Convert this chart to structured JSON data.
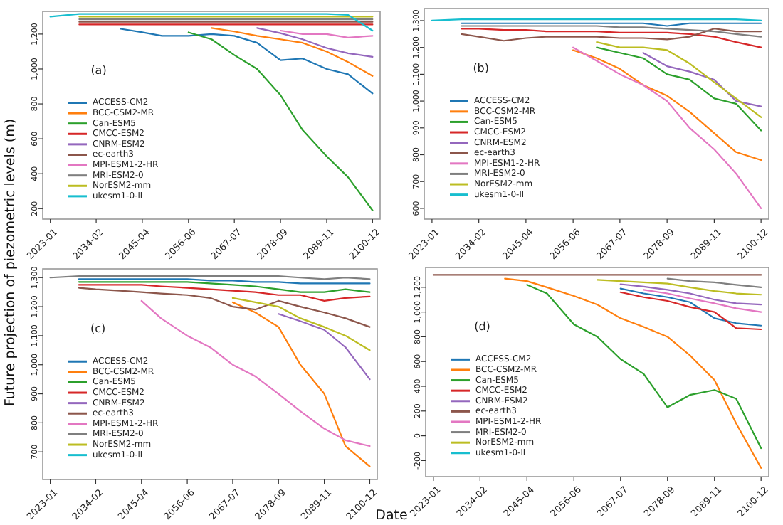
{
  "chart_data": [
    {
      "type": "line",
      "ylabel": "Future projection of piezometric levels (m)",
      "annotations": [
        "(a)"
      ],
      "legend": "left",
      "x": [
        "2023-01",
        "2030-01",
        "2034-02",
        "2040-01",
        "2045-04",
        "2050-01",
        "2056-06",
        "2062-01",
        "2067-07",
        "2073-01",
        "2078-09",
        "2084-01",
        "2089-11",
        "2095-01",
        "2100-12"
      ],
      "xlim": [
        "2021-03",
        "2102-10"
      ],
      "xticks": [
        "2023-01",
        "2034-02",
        "2045-04",
        "2056-06",
        "2067-07",
        "2078-09",
        "2089-11",
        "2100-12"
      ],
      "ylim": [
        140,
        1330
      ],
      "yticks": [
        200,
        400,
        600,
        800,
        {
          "value": 1000,
          "label": "1,000"
        },
        {
          "value": 1200,
          "label": "1,200"
        }
      ],
      "series": [
        {
          "name": "ACCESS-CM2",
          "color": "#1f77b4",
          "values": [
            null,
            null,
            null,
            1230,
            1210,
            1190,
            1190,
            1200,
            1190,
            1150,
            1050,
            1060,
            1000,
            970,
            860
          ]
        },
        {
          "name": "BCC-CSM2-MR",
          "color": "#ff7f0e",
          "values": [
            null,
            null,
            null,
            null,
            null,
            null,
            null,
            1235,
            1215,
            1190,
            1170,
            1150,
            1100,
            1040,
            960
          ]
        },
        {
          "name": "Can-ESM5",
          "color": "#2ca02c",
          "values": [
            null,
            null,
            null,
            null,
            null,
            null,
            1210,
            1170,
            1080,
            1000,
            850,
            650,
            500,
            380,
            190
          ]
        },
        {
          "name": "CMCC-ESM2",
          "color": "#d62728",
          "values": [
            null,
            1255,
            1255,
            1255,
            1255,
            1255,
            1255,
            1255,
            1255,
            1255,
            1255,
            1255,
            1255,
            1255,
            1255
          ]
        },
        {
          "name": "CNRM-ESM2",
          "color": "#9467bd",
          "values": [
            null,
            null,
            null,
            null,
            null,
            null,
            null,
            null,
            null,
            1235,
            1205,
            1170,
            1120,
            1090,
            1070
          ]
        },
        {
          "name": "ec-earth3",
          "color": "#8c564b",
          "values": [
            null,
            1270,
            1270,
            1270,
            1270,
            1270,
            1270,
            1270,
            1270,
            1270,
            1270,
            1270,
            1270,
            1270,
            1270
          ]
        },
        {
          "name": "MPI-ESM1-2-HR",
          "color": "#e377c2",
          "values": [
            null,
            null,
            null,
            null,
            null,
            null,
            null,
            null,
            null,
            null,
            1220,
            1200,
            1200,
            1180,
            1190
          ]
        },
        {
          "name": "MRI-ESM2-0",
          "color": "#7f7f7f",
          "values": [
            null,
            1285,
            1285,
            1285,
            1285,
            1285,
            1285,
            1285,
            1285,
            1285,
            1285,
            1285,
            1285,
            1285,
            1285
          ]
        },
        {
          "name": "NorESM2-mm",
          "color": "#bcbd22",
          "values": [
            null,
            1300,
            1300,
            1300,
            1300,
            1300,
            1300,
            1300,
            1300,
            1300,
            1300,
            1300,
            1300,
            1300,
            1300
          ]
        },
        {
          "name": "ukesm1-0-ll",
          "color": "#17becf",
          "values": [
            1300,
            1315,
            1315,
            1315,
            1315,
            1315,
            1315,
            1315,
            1315,
            1315,
            1315,
            1315,
            1315,
            1310,
            1220
          ]
        }
      ]
    },
    {
      "type": "line",
      "annotations": [
        "(b)"
      ],
      "legend": "left",
      "x": [
        "2023-01",
        "2030-01",
        "2034-02",
        "2040-01",
        "2045-04",
        "2050-01",
        "2056-06",
        "2062-01",
        "2067-07",
        "2073-01",
        "2078-09",
        "2084-01",
        "2089-11",
        "2095-01",
        "2100-12"
      ],
      "xlim": [
        "2021-03",
        "2102-10"
      ],
      "xticks": [
        "2023-01",
        "2034-02",
        "2045-04",
        "2056-06",
        "2067-07",
        "2078-09",
        "2089-11",
        "2100-12"
      ],
      "ylim": [
        560,
        1345
      ],
      "yticks": [
        600,
        700,
        800,
        900,
        {
          "value": 1000,
          "label": "1,000"
        },
        {
          "value": 1100,
          "label": "1,100"
        },
        {
          "value": 1200,
          "label": "1,200"
        },
        {
          "value": 1300,
          "label": "1,300"
        }
      ],
      "series": [
        {
          "name": "ACCESS-CM2",
          "color": "#1f77b4",
          "values": [
            null,
            1290,
            1290,
            1290,
            1290,
            1290,
            1290,
            1290,
            1290,
            1290,
            1280,
            1290,
            1290,
            1290,
            1290
          ]
        },
        {
          "name": "BCC-CSM2-MR",
          "color": "#ff7f0e",
          "values": [
            null,
            null,
            null,
            null,
            null,
            null,
            1190,
            1160,
            1120,
            1060,
            1020,
            960,
            880,
            810,
            780
          ]
        },
        {
          "name": "Can-ESM5",
          "color": "#2ca02c",
          "values": [
            null,
            null,
            null,
            null,
            null,
            null,
            null,
            1200,
            1180,
            1160,
            1100,
            1080,
            1010,
            990,
            890
          ]
        },
        {
          "name": "CMCC-ESM2",
          "color": "#d62728",
          "values": [
            null,
            1270,
            1270,
            1265,
            1265,
            1260,
            1260,
            1260,
            1255,
            1255,
            1255,
            1250,
            1240,
            1220,
            1200
          ]
        },
        {
          "name": "CNRM-ESM2",
          "color": "#9467bd",
          "values": [
            null,
            null,
            null,
            null,
            null,
            null,
            null,
            null,
            null,
            1180,
            1130,
            1110,
            1080,
            1000,
            980
          ]
        },
        {
          "name": "ec-earth3",
          "color": "#8c564b",
          "values": [
            null,
            1250,
            1240,
            1225,
            1235,
            1240,
            1240,
            1240,
            1235,
            1235,
            1230,
            1240,
            1270,
            1260,
            1260
          ]
        },
        {
          "name": "MPI-ESM1-2-HR",
          "color": "#e377c2",
          "values": [
            null,
            null,
            null,
            null,
            null,
            null,
            1200,
            1150,
            1100,
            1060,
            1000,
            900,
            820,
            730,
            600
          ]
        },
        {
          "name": "MRI-ESM2-0",
          "color": "#7f7f7f",
          "values": [
            null,
            1280,
            1280,
            1280,
            1280,
            1280,
            1280,
            1280,
            1275,
            1275,
            1270,
            1265,
            1260,
            1250,
            1240
          ]
        },
        {
          "name": "NorESM2-mm",
          "color": "#bcbd22",
          "values": [
            null,
            null,
            null,
            null,
            null,
            null,
            null,
            1220,
            1200,
            1200,
            1190,
            1140,
            1070,
            1010,
            940
          ]
        },
        {
          "name": "ukesm1-0-ll",
          "color": "#17becf",
          "values": [
            1300,
            1305,
            1305,
            1305,
            1305,
            1305,
            1305,
            1305,
            1305,
            1305,
            1305,
            1305,
            1305,
            1305,
            1300
          ]
        }
      ]
    },
    {
      "type": "line",
      "annotations": [
        "(c)"
      ],
      "legend": "left",
      "x": [
        "2023-01",
        "2030-01",
        "2034-02",
        "2040-01",
        "2045-04",
        "2050-01",
        "2056-06",
        "2062-01",
        "2067-07",
        "2073-01",
        "2078-09",
        "2084-01",
        "2089-11",
        "2095-01",
        "2100-12"
      ],
      "xlim": [
        "2021-03",
        "2102-10"
      ],
      "xticks": [
        "2023-01",
        "2034-02",
        "2045-04",
        "2056-06",
        "2067-07",
        "2078-09",
        "2089-11",
        "2100-12"
      ],
      "ylim": [
        605,
        1330
      ],
      "yticks": [
        700,
        800,
        900,
        {
          "value": 1000,
          "label": "1,000"
        },
        {
          "value": 1100,
          "label": "1,100"
        },
        {
          "value": 1200,
          "label": "1,200"
        },
        {
          "value": 1300,
          "label": "1,300"
        }
      ],
      "series": [
        {
          "name": "ACCESS-CM2",
          "color": "#1f77b4",
          "values": [
            null,
            1295,
            1295,
            1295,
            1295,
            1295,
            1295,
            1290,
            1290,
            1285,
            1285,
            1280,
            1280,
            1280,
            1280
          ]
        },
        {
          "name": "BCC-CSM2-MR",
          "color": "#ff7f0e",
          "values": [
            null,
            null,
            null,
            null,
            null,
            null,
            null,
            null,
            1215,
            1180,
            1130,
            1000,
            900,
            720,
            650
          ]
        },
        {
          "name": "Can-ESM5",
          "color": "#2ca02c",
          "values": [
            null,
            1285,
            1285,
            1285,
            1285,
            1285,
            1285,
            1280,
            1275,
            1270,
            1260,
            1250,
            1250,
            1260,
            1250
          ]
        },
        {
          "name": "CMCC-ESM2",
          "color": "#d62728",
          "values": [
            null,
            1275,
            1275,
            1275,
            1275,
            1270,
            1265,
            1260,
            1255,
            1250,
            1240,
            1240,
            1220,
            1230,
            1235
          ]
        },
        {
          "name": "CNRM-ESM2",
          "color": "#9467bd",
          "values": [
            null,
            null,
            null,
            null,
            null,
            null,
            null,
            null,
            null,
            null,
            1175,
            1150,
            1120,
            1060,
            950
          ]
        },
        {
          "name": "ec-earth3",
          "color": "#8c564b",
          "values": [
            null,
            1265,
            1260,
            1255,
            1250,
            1245,
            1240,
            1230,
            1200,
            1190,
            1220,
            1200,
            1180,
            1160,
            1130
          ]
        },
        {
          "name": "MPI-ESM1-2-HR",
          "color": "#e377c2",
          "values": [
            null,
            null,
            null,
            null,
            1220,
            1160,
            1100,
            1060,
            1000,
            960,
            900,
            840,
            780,
            740,
            720
          ]
        },
        {
          "name": "MRI-ESM2-0",
          "color": "#7f7f7f",
          "values": [
            1300,
            1305,
            1305,
            1305,
            1305,
            1305,
            1305,
            1305,
            1305,
            1305,
            1305,
            1300,
            1295,
            1300,
            1295
          ]
        },
        {
          "name": "NorESM2-mm",
          "color": "#bcbd22",
          "values": [
            null,
            null,
            null,
            null,
            null,
            null,
            null,
            null,
            1230,
            1215,
            1200,
            1160,
            1130,
            1100,
            1050
          ]
        },
        {
          "name": "ukesm1-0-ll",
          "color": "#17becf",
          "values": [
            null,
            null,
            null,
            null,
            null,
            null,
            null,
            null,
            null,
            null,
            null,
            null,
            null,
            null,
            null
          ]
        }
      ]
    },
    {
      "type": "line",
      "xlabel": "Date",
      "annotations": [
        "(d)"
      ],
      "legend": "left",
      "x": [
        "2023-01",
        "2030-01",
        "2034-02",
        "2040-01",
        "2045-04",
        "2050-01",
        "2056-06",
        "2062-01",
        "2067-07",
        "2073-01",
        "2078-09",
        "2084-01",
        "2089-11",
        "2095-01",
        "2100-12"
      ],
      "xlim": [
        "2021-03",
        "2102-10"
      ],
      "xticks": [
        "2023-01",
        "2034-02",
        "2045-04",
        "2056-06",
        "2067-07",
        "2078-09",
        "2089-11",
        "2100-12"
      ],
      "ylim": [
        -330,
        1360
      ],
      "yticks": [
        -200,
        0,
        200,
        400,
        600,
        800,
        {
          "value": 1000,
          "label": "1,000"
        },
        {
          "value": 1200,
          "label": "1,200"
        }
      ],
      "series": [
        {
          "name": "ACCESS-CM2",
          "color": "#1f77b4",
          "values": [
            null,
            null,
            null,
            null,
            null,
            null,
            null,
            null,
            1190,
            1150,
            1120,
            1080,
            950,
            910,
            890
          ]
        },
        {
          "name": "BCC-CSM2-MR",
          "color": "#ff7f0e",
          "values": [
            null,
            null,
            null,
            1270,
            1250,
            1200,
            1130,
            1060,
            950,
            880,
            800,
            650,
            450,
            100,
            -260
          ]
        },
        {
          "name": "Can-ESM5",
          "color": "#2ca02c",
          "values": [
            null,
            null,
            null,
            null,
            1220,
            1150,
            900,
            800,
            620,
            500,
            230,
            330,
            370,
            300,
            -100
          ]
        },
        {
          "name": "CMCC-ESM2",
          "color": "#d62728",
          "values": [
            null,
            null,
            null,
            null,
            null,
            null,
            null,
            null,
            1160,
            1120,
            1090,
            1040,
            1000,
            870,
            860
          ]
        },
        {
          "name": "CNRM-ESM2",
          "color": "#9467bd",
          "values": [
            null,
            null,
            null,
            null,
            null,
            null,
            null,
            null,
            1225,
            1205,
            1180,
            1150,
            1100,
            1070,
            1060
          ]
        },
        {
          "name": "ec-earth3",
          "color": "#8c564b",
          "values": [
            1300,
            1300,
            1300,
            1300,
            1300,
            1300,
            1300,
            1300,
            1300,
            1300,
            1300,
            1300,
            1300,
            1300,
            1300
          ]
        },
        {
          "name": "MPI-ESM1-2-HR",
          "color": "#e377c2",
          "values": [
            null,
            null,
            null,
            null,
            null,
            null,
            null,
            null,
            null,
            1180,
            1150,
            1110,
            1070,
            1030,
            1000
          ]
        },
        {
          "name": "MRI-ESM2-0",
          "color": "#7f7f7f",
          "values": [
            null,
            null,
            null,
            null,
            null,
            null,
            null,
            null,
            null,
            null,
            1270,
            1250,
            1240,
            1220,
            1200
          ]
        },
        {
          "name": "NorESM2-mm",
          "color": "#bcbd22",
          "values": [
            null,
            null,
            null,
            null,
            null,
            null,
            null,
            1260,
            1250,
            1240,
            1230,
            1200,
            1170,
            1150,
            1140
          ]
        },
        {
          "name": "ukesm1-0-ll",
          "color": "#17becf",
          "values": [
            null,
            null,
            null,
            null,
            null,
            null,
            null,
            null,
            null,
            null,
            null,
            null,
            null,
            null,
            null
          ]
        }
      ]
    }
  ]
}
